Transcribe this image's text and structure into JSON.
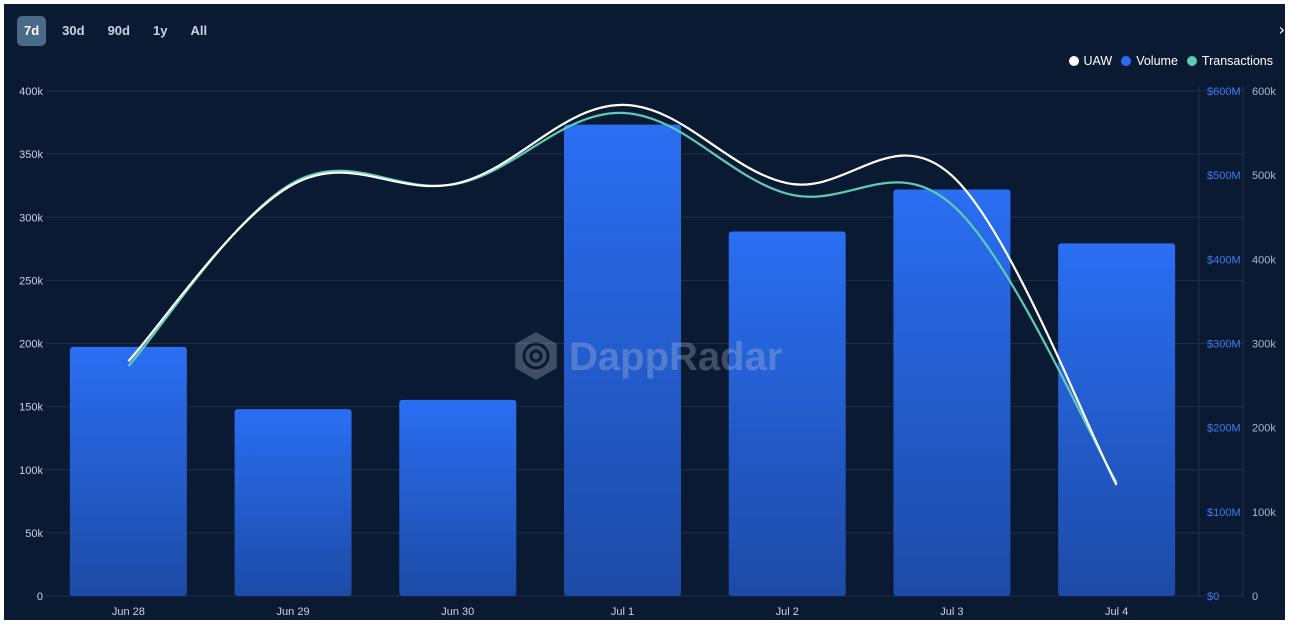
{
  "range_tabs": [
    {
      "label": "7d",
      "active": true
    },
    {
      "label": "30d",
      "active": false
    },
    {
      "label": "90d",
      "active": false
    },
    {
      "label": "1y",
      "active": false
    },
    {
      "label": "All",
      "active": false
    }
  ],
  "expand_icon": "chevron-right-icon",
  "watermark": "DappRadar",
  "colors": {
    "background": "#0b1a33",
    "uaw": "#ffffff",
    "volume": "#2c6af0",
    "transactions": "#5fcbb4",
    "left_axis_text": "#c9d3e3",
    "volume_axis_text": "#3b7cf0",
    "tx_axis_text": "#a9b8cc"
  },
  "legend": [
    {
      "label": "UAW",
      "color": "#ffffff"
    },
    {
      "label": "Volume",
      "color": "#2c6af0"
    },
    {
      "label": "Transactions",
      "color": "#5fcbb4"
    }
  ],
  "chart_data": {
    "type": "bar",
    "categories": [
      "Jun 28",
      "Jun 29",
      "Jun 30",
      "Jul 1",
      "Jul 2",
      "Jul 3",
      "Jul 4"
    ],
    "series": [
      {
        "name": "Volume",
        "type": "bar",
        "axis": "volume",
        "unit": "$M",
        "values": [
          296,
          222,
          233,
          560,
          433,
          483,
          419
        ]
      },
      {
        "name": "UAW",
        "type": "line",
        "axis": "left",
        "values": [
          186000,
          326000,
          327000,
          389000,
          327000,
          333000,
          88000
        ]
      },
      {
        "name": "Transactions",
        "type": "line",
        "axis": "transactions",
        "values": [
          273000,
          491000,
          490000,
          574000,
          478000,
          465000,
          135000
        ]
      }
    ],
    "axes": {
      "left": {
        "ticks": [
          "0",
          "50k",
          "100k",
          "150k",
          "200k",
          "250k",
          "300k",
          "350k",
          "400k"
        ],
        "range": [
          0,
          400000
        ]
      },
      "volume": {
        "ticks": [
          "$0",
          "$100M",
          "$200M",
          "$300M",
          "$400M",
          "$500M",
          "$600M"
        ],
        "range": [
          0,
          600
        ]
      },
      "transactions": {
        "ticks": [
          "0",
          "100k",
          "200k",
          "300k",
          "400k",
          "500k",
          "600k"
        ],
        "range": [
          0,
          600000
        ]
      }
    },
    "grid": true,
    "legend_position": "top-right"
  }
}
